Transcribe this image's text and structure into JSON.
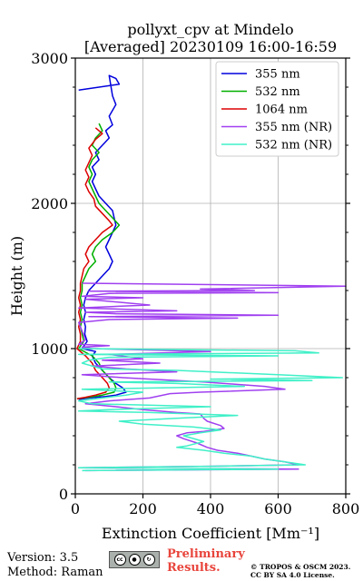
{
  "chart_data": {
    "type": "line",
    "title_line1": "pollyxt_cpv at Mindelo",
    "title_line2": "[Averaged] 20230109 16:00-16:59",
    "xlabel": "Extinction Coefficient [Mm⁻¹]",
    "ylabel": "Height (m)",
    "xlim": [
      0,
      800
    ],
    "ylim": [
      0,
      3000
    ],
    "xticks": [
      0,
      200,
      400,
      600,
      800
    ],
    "yticks": [
      0,
      1000,
      2000,
      3000
    ],
    "grid": true,
    "legend_position": "top-right",
    "series": [
      {
        "name": "355 nm",
        "color": "#0000dd",
        "points": [
          [
            10,
            2780
          ],
          [
            130,
            2820
          ],
          [
            120,
            2860
          ],
          [
            100,
            2880
          ],
          [
            110,
            2740
          ],
          [
            120,
            2680
          ],
          [
            100,
            2600
          ],
          [
            110,
            2540
          ],
          [
            90,
            2500
          ],
          [
            100,
            2450
          ],
          [
            80,
            2400
          ],
          [
            60,
            2350
          ],
          [
            70,
            2300
          ],
          [
            50,
            2250
          ],
          [
            60,
            2200
          ],
          [
            50,
            2150
          ],
          [
            60,
            2100
          ],
          [
            70,
            2050
          ],
          [
            90,
            2000
          ],
          [
            110,
            1950
          ],
          [
            115,
            1900
          ],
          [
            120,
            1850
          ],
          [
            110,
            1800
          ],
          [
            100,
            1750
          ],
          [
            90,
            1700
          ],
          [
            100,
            1650
          ],
          [
            110,
            1600
          ],
          [
            100,
            1550
          ],
          [
            80,
            1500
          ],
          [
            60,
            1450
          ],
          [
            40,
            1400
          ],
          [
            30,
            1350
          ],
          [
            25,
            1300
          ],
          [
            30,
            1250
          ],
          [
            25,
            1200
          ],
          [
            30,
            1150
          ],
          [
            28,
            1100
          ],
          [
            35,
            1050
          ],
          [
            20,
            1000
          ],
          [
            60,
            980
          ],
          [
            50,
            950
          ],
          [
            60,
            900
          ],
          [
            80,
            850
          ],
          [
            100,
            800
          ],
          [
            120,
            760
          ],
          [
            140,
            730
          ],
          [
            150,
            700
          ],
          [
            120,
            680
          ],
          [
            90,
            670
          ],
          [
            40,
            660
          ],
          [
            10,
            650
          ]
        ]
      },
      {
        "name": "532 nm",
        "color": "#00b000",
        "points": [
          [
            70,
            2550
          ],
          [
            80,
            2500
          ],
          [
            60,
            2450
          ],
          [
            50,
            2400
          ],
          [
            70,
            2350
          ],
          [
            50,
            2300
          ],
          [
            40,
            2250
          ],
          [
            50,
            2200
          ],
          [
            40,
            2150
          ],
          [
            50,
            2100
          ],
          [
            60,
            2050
          ],
          [
            70,
            2000
          ],
          [
            90,
            1950
          ],
          [
            110,
            1900
          ],
          [
            130,
            1850
          ],
          [
            110,
            1800
          ],
          [
            80,
            1750
          ],
          [
            60,
            1700
          ],
          [
            50,
            1650
          ],
          [
            60,
            1600
          ],
          [
            40,
            1550
          ],
          [
            30,
            1500
          ],
          [
            20,
            1450
          ],
          [
            20,
            1400
          ],
          [
            15,
            1350
          ],
          [
            20,
            1300
          ],
          [
            15,
            1250
          ],
          [
            20,
            1200
          ],
          [
            15,
            1150
          ],
          [
            20,
            1100
          ],
          [
            25,
            1050
          ],
          [
            10,
            1000
          ],
          [
            50,
            950
          ],
          [
            70,
            900
          ],
          [
            80,
            850
          ],
          [
            100,
            800
          ],
          [
            115,
            760
          ],
          [
            120,
            730
          ],
          [
            115,
            700
          ],
          [
            80,
            680
          ],
          [
            40,
            665
          ],
          [
            5,
            655
          ]
        ]
      },
      {
        "name": "1064 nm",
        "color": "#dd0000",
        "points": [
          [
            60,
            2520
          ],
          [
            80,
            2480
          ],
          [
            60,
            2440
          ],
          [
            40,
            2380
          ],
          [
            50,
            2330
          ],
          [
            40,
            2280
          ],
          [
            30,
            2230
          ],
          [
            40,
            2180
          ],
          [
            30,
            2130
          ],
          [
            40,
            2080
          ],
          [
            55,
            2030
          ],
          [
            60,
            1980
          ],
          [
            80,
            1930
          ],
          [
            100,
            1880
          ],
          [
            110,
            1850
          ],
          [
            80,
            1800
          ],
          [
            60,
            1750
          ],
          [
            40,
            1700
          ],
          [
            30,
            1650
          ],
          [
            40,
            1600
          ],
          [
            25,
            1550
          ],
          [
            20,
            1500
          ],
          [
            15,
            1450
          ],
          [
            15,
            1400
          ],
          [
            10,
            1350
          ],
          [
            15,
            1300
          ],
          [
            10,
            1250
          ],
          [
            15,
            1200
          ],
          [
            10,
            1150
          ],
          [
            15,
            1100
          ],
          [
            15,
            1050
          ],
          [
            5,
            1000
          ],
          [
            30,
            950
          ],
          [
            50,
            900
          ],
          [
            60,
            850
          ],
          [
            80,
            800
          ],
          [
            95,
            760
          ],
          [
            100,
            730
          ],
          [
            90,
            700
          ],
          [
            60,
            680
          ],
          [
            30,
            665
          ],
          [
            5,
            655
          ]
        ]
      },
      {
        "name": "355 nm (NR)",
        "color": "#a040f0",
        "points": [
          [
            20,
            1450
          ],
          [
            800,
            1430
          ],
          [
            370,
            1410
          ],
          [
            530,
            1400
          ],
          [
            40,
            1395
          ],
          [
            600,
            1385
          ],
          [
            100,
            1380
          ],
          [
            20,
            1360
          ],
          [
            200,
            1350
          ],
          [
            30,
            1340
          ],
          [
            80,
            1330
          ],
          [
            220,
            1300
          ],
          [
            10,
            1280
          ],
          [
            300,
            1260
          ],
          [
            30,
            1250
          ],
          [
            120,
            1240
          ],
          [
            600,
            1230
          ],
          [
            40,
            1220
          ],
          [
            480,
            1210
          ],
          [
            100,
            1200
          ],
          [
            10,
            1180
          ],
          [
            20,
            1120
          ],
          [
            30,
            1060
          ],
          [
            10,
            1030
          ],
          [
            100,
            1020
          ],
          [
            20,
            1010
          ],
          [
            50,
            1000
          ],
          [
            400,
            980
          ],
          [
            100,
            960
          ],
          [
            200,
            930
          ],
          [
            80,
            920
          ],
          [
            250,
            900
          ],
          [
            50,
            880
          ],
          [
            150,
            860
          ],
          [
            300,
            840
          ],
          [
            20,
            820
          ],
          [
            140,
            800
          ],
          [
            380,
            770
          ],
          [
            560,
            740
          ],
          [
            620,
            720
          ],
          [
            370,
            700
          ],
          [
            280,
            690
          ],
          [
            220,
            660
          ],
          [
            100,
            640
          ],
          [
            30,
            620
          ],
          [
            120,
            600
          ],
          [
            200,
            580
          ],
          [
            300,
            560
          ],
          [
            370,
            550
          ],
          [
            380,
            520
          ],
          [
            390,
            500
          ],
          [
            430,
            470
          ],
          [
            440,
            450
          ],
          [
            380,
            430
          ],
          [
            330,
            420
          ],
          [
            300,
            400
          ],
          [
            320,
            380
          ],
          [
            360,
            350
          ],
          [
            390,
            320
          ],
          [
            420,
            300
          ],
          [
            480,
            280
          ],
          [
            520,
            260
          ],
          [
            560,
            240
          ],
          [
            620,
            220
          ],
          [
            660,
            200
          ],
          [
            400,
            190
          ],
          [
            10,
            180
          ],
          [
            660,
            170
          ],
          [
            30,
            160
          ]
        ]
      },
      {
        "name": "532 nm (NR)",
        "color": "#40f0c8",
        "points": [
          [
            10,
            1000
          ],
          [
            650,
            985
          ],
          [
            720,
            970
          ],
          [
            10,
            960
          ],
          [
            600,
            950
          ],
          [
            100,
            940
          ],
          [
            40,
            920
          ],
          [
            20,
            900
          ],
          [
            50,
            880
          ],
          [
            80,
            860
          ],
          [
            300,
            850
          ],
          [
            400,
            840
          ],
          [
            600,
            820
          ],
          [
            790,
            800
          ],
          [
            400,
            790
          ],
          [
            700,
            780
          ],
          [
            100,
            770
          ],
          [
            300,
            760
          ],
          [
            500,
            740
          ],
          [
            20,
            720
          ],
          [
            200,
            700
          ],
          [
            150,
            680
          ],
          [
            80,
            660
          ],
          [
            10,
            640
          ],
          [
            50,
            620
          ],
          [
            400,
            600
          ],
          [
            100,
            580
          ],
          [
            10,
            570
          ],
          [
            220,
            560
          ],
          [
            480,
            540
          ],
          [
            300,
            520
          ],
          [
            130,
            500
          ],
          [
            200,
            480
          ],
          [
            350,
            460
          ],
          [
            430,
            440
          ],
          [
            370,
            420
          ],
          [
            320,
            400
          ],
          [
            380,
            360
          ],
          [
            330,
            330
          ],
          [
            300,
            320
          ],
          [
            380,
            300
          ],
          [
            440,
            280
          ],
          [
            520,
            260
          ],
          [
            560,
            240
          ],
          [
            620,
            220
          ],
          [
            680,
            200
          ],
          [
            400,
            190
          ],
          [
            10,
            180
          ],
          [
            600,
            170
          ],
          [
            20,
            160
          ]
        ]
      }
    ]
  },
  "footer": {
    "version": "Version: 3.5",
    "method": "Method: Raman",
    "prelim_line1": "Preliminary",
    "prelim_line2": "Results.",
    "copyright_line1": "© TROPOS & OSCM 2023.",
    "copyright_line2": "CC BY SA 4.0 License.",
    "cc_badge_text": "cc"
  }
}
